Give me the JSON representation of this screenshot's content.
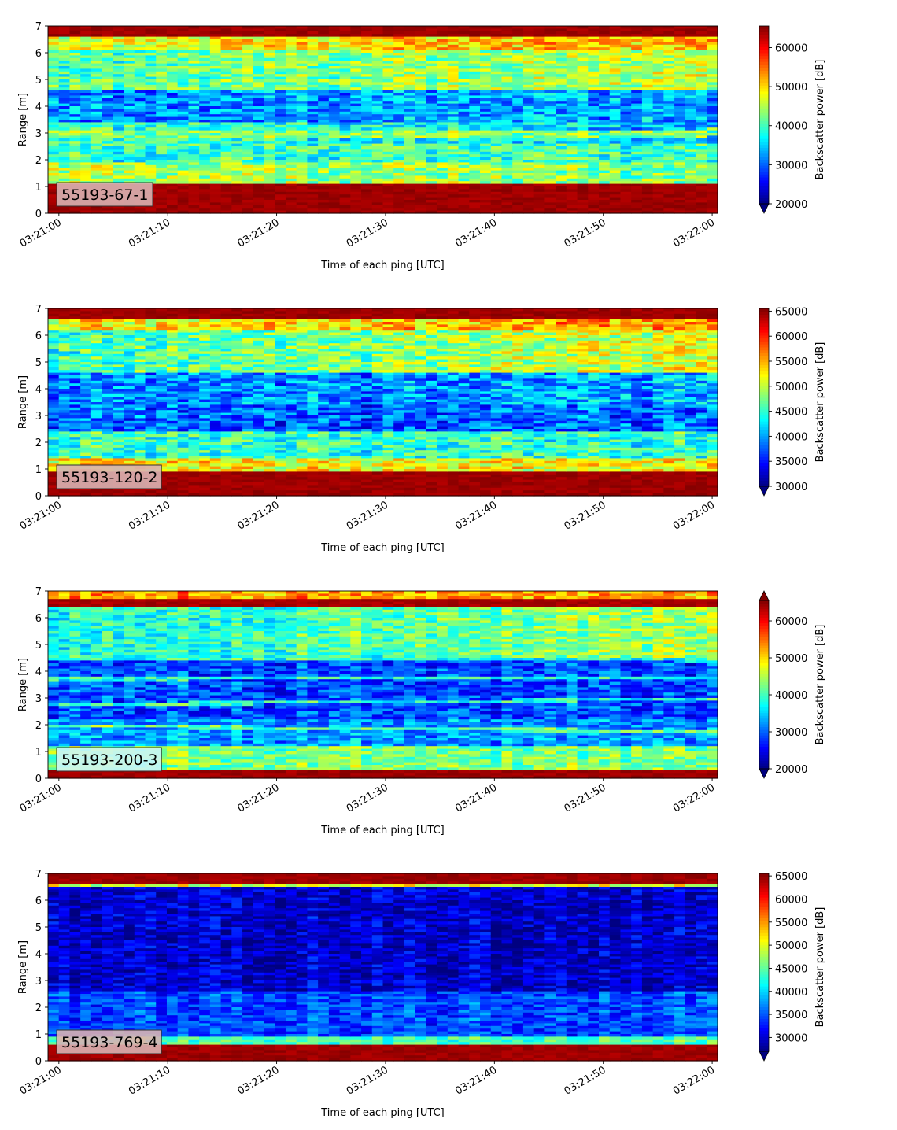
{
  "chart_data": [
    {
      "type": "heatmap",
      "panel_label": "55193-67-1",
      "label_box_color": "#d9b3b3",
      "xlabel": "Time of each ping [UTC]",
      "ylabel": "Range [m]",
      "x_tick_labels": [
        "03:21:00",
        "03:21:10",
        "03:21:20",
        "03:21:30",
        "03:21:40",
        "03:21:50",
        "03:22:00"
      ],
      "x_range_seconds": [
        -1,
        60.5
      ],
      "ylim": [
        0,
        7
      ],
      "y_ticks": [
        0,
        1,
        2,
        3,
        4,
        5,
        6,
        7
      ],
      "colorbar": {
        "label": "Backscatter power [dB]",
        "min": 20000,
        "max": 65535,
        "ticks": [
          20000,
          30000,
          40000,
          50000,
          60000
        ],
        "extend": "min"
      },
      "colormap": "jet",
      "layers": [
        {
          "range_from": 0.25,
          "range_to": 1.1,
          "level": 0.97
        },
        {
          "range_from": 1.1,
          "range_to": 1.9,
          "level_start": 0.55,
          "level_end": 0.5
        },
        {
          "range_from": 1.9,
          "range_to": 2.6,
          "level_start": 0.42,
          "level_end": 0.45
        },
        {
          "range_from": 2.6,
          "range_to": 3.4,
          "level_start": 0.45,
          "level_end": 0.3
        },
        {
          "range_from": 3.4,
          "range_to": 4.6,
          "level_start": 0.25,
          "level_end": 0.3
        },
        {
          "range_from": 4.6,
          "range_to": 6.1,
          "level_start": 0.45,
          "level_end": 0.58
        },
        {
          "range_from": 6.1,
          "range_to": 6.6,
          "level_start": 0.6,
          "level_end": 0.72
        },
        {
          "range_from": 6.6,
          "range_to": 7.0,
          "level": 0.97
        }
      ],
      "trend_band": {
        "range_start": 2.9,
        "range_end": 3.0,
        "width": 0.3,
        "level": 0.5
      },
      "noise": 0.12
    },
    {
      "type": "heatmap",
      "panel_label": "55193-120-2",
      "label_box_color": "#d9b3b3",
      "xlabel": "Time of each ping [UTC]",
      "ylabel": "Range [m]",
      "x_tick_labels": [
        "03:21:00",
        "03:21:10",
        "03:21:20",
        "03:21:30",
        "03:21:40",
        "03:21:50",
        "03:22:00"
      ],
      "x_range_seconds": [
        -1,
        60.5
      ],
      "ylim": [
        0,
        7
      ],
      "y_ticks": [
        0,
        1,
        2,
        3,
        4,
        5,
        6,
        7
      ],
      "colorbar": {
        "label": "Backscatter power [dB]",
        "min": 30000,
        "max": 65535,
        "ticks": [
          30000,
          35000,
          40000,
          45000,
          50000,
          55000,
          60000,
          65000
        ],
        "extend": "min"
      },
      "colormap": "jet",
      "layers": [
        {
          "range_from": 0.2,
          "range_to": 0.85,
          "level": 0.97
        },
        {
          "range_from": 0.85,
          "range_to": 1.4,
          "level": 0.62
        },
        {
          "range_from": 1.4,
          "range_to": 2.4,
          "level": 0.42
        },
        {
          "range_from": 2.4,
          "range_to": 3.4,
          "level": 0.22
        },
        {
          "range_from": 3.4,
          "range_to": 4.6,
          "level_start": 0.24,
          "level_end": 0.3
        },
        {
          "range_from": 4.6,
          "range_to": 6.2,
          "level_start": 0.42,
          "level_end": 0.6
        },
        {
          "range_from": 6.2,
          "range_to": 6.65,
          "level_start": 0.6,
          "level_end": 0.75
        },
        {
          "range_from": 6.65,
          "range_to": 7.0,
          "level": 0.97
        }
      ],
      "noise": 0.13
    },
    {
      "type": "heatmap",
      "panel_label": "55193-200-3",
      "label_box_color": "#ccf5f5",
      "xlabel": "Time of each ping [UTC]",
      "ylabel": "Range [m]",
      "x_tick_labels": [
        "03:21:00",
        "03:21:10",
        "03:21:20",
        "03:21:30",
        "03:21:40",
        "03:21:50",
        "03:22:00"
      ],
      "x_range_seconds": [
        -1,
        60.5
      ],
      "ylim": [
        0,
        7
      ],
      "y_ticks": [
        0,
        1,
        2,
        3,
        4,
        5,
        6,
        7
      ],
      "colorbar": {
        "label": "Backscatter power [dB]",
        "min": 20000,
        "max": 65535,
        "ticks": [
          20000,
          30000,
          40000,
          50000,
          60000
        ],
        "extend": "both"
      },
      "colormap": "jet",
      "layers": [
        {
          "range_from": 0.0,
          "range_to": 0.3,
          "level": 0.97
        },
        {
          "range_from": 0.3,
          "range_to": 1.2,
          "level": 0.5
        },
        {
          "range_from": 1.2,
          "range_to": 2.2,
          "level": 0.28
        },
        {
          "range_from": 2.2,
          "range_to": 4.4,
          "level": 0.2
        },
        {
          "range_from": 4.4,
          "range_to": 6.4,
          "level_start": 0.38,
          "level_end": 0.55
        },
        {
          "range_from": 6.4,
          "range_to": 6.7,
          "level": 0.96
        },
        {
          "range_from": 6.7,
          "range_to": 7.0,
          "level": 0.72
        }
      ],
      "lines": [
        {
          "range_start": 1.95,
          "range_end": 1.75,
          "level": 0.48
        },
        {
          "range_start": 2.75,
          "range_end": 2.95,
          "level": 0.42
        },
        {
          "range_start": 3.7,
          "range_end": 3.75,
          "level": 0.4
        },
        {
          "range_start": 4.6,
          "range_end": 4.4,
          "level": 0.4
        }
      ],
      "noise": 0.11
    },
    {
      "type": "heatmap",
      "panel_label": "55193-769-4",
      "label_box_color": "#d9b3b3",
      "xlabel": "Time of each ping [UTC]",
      "ylabel": "Range [m]",
      "x_tick_labels": [
        "03:21:00",
        "03:21:10",
        "03:21:20",
        "03:21:30",
        "03:21:40",
        "03:21:50",
        "03:22:00"
      ],
      "x_range_seconds": [
        -1,
        60.5
      ],
      "ylim": [
        0,
        7
      ],
      "y_ticks": [
        0,
        1,
        2,
        3,
        4,
        5,
        6,
        7
      ],
      "colorbar": {
        "label": "Backscatter power [dB]",
        "min": 27000,
        "max": 65535,
        "ticks": [
          30000,
          35000,
          40000,
          45000,
          50000,
          55000,
          60000,
          65000
        ],
        "extend": "min"
      },
      "colormap": "jet",
      "layers": [
        {
          "range_from": 0.25,
          "range_to": 0.65,
          "level": 0.97
        },
        {
          "range_from": 0.65,
          "range_to": 0.85,
          "level": 0.45
        },
        {
          "range_from": 0.85,
          "range_to": 2.6,
          "level": 0.2
        },
        {
          "range_from": 2.6,
          "range_to": 6.5,
          "level": 0.08
        },
        {
          "range_from": 6.5,
          "range_to": 6.65,
          "level": 0.6
        },
        {
          "range_from": 6.65,
          "range_to": 7.0,
          "level": 0.97
        }
      ],
      "noise": 0.09
    }
  ]
}
